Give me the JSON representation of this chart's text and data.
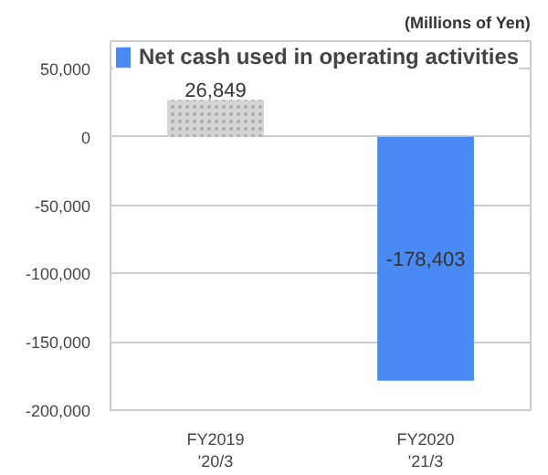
{
  "chart_data": {
    "type": "bar",
    "categories": [
      "FY2019\n'20/3",
      "FY2020\n'21/3"
    ],
    "series": [
      {
        "name": "Net cash used in operating activities",
        "color": "#4a8af4",
        "colors": [
          "#d4d4d4",
          "#4a8af4"
        ],
        "values": [
          26849,
          -178403
        ],
        "value_labels": [
          "26,849",
          "-178,403"
        ]
      }
    ],
    "annotations": [
      "(Millions of Yen)"
    ],
    "ylim": [
      -200000,
      70000
    ],
    "yticks": [
      {
        "value": 50000,
        "label": "50,000"
      },
      {
        "value": 0,
        "label": "0"
      },
      {
        "value": -50000,
        "label": "-50,000"
      },
      {
        "value": -100000,
        "label": "-100,000"
      },
      {
        "value": -150000,
        "label": "-150,000"
      },
      {
        "value": -200000,
        "label": "-200,000"
      }
    ],
    "grid": "y",
    "legend": "top left"
  }
}
